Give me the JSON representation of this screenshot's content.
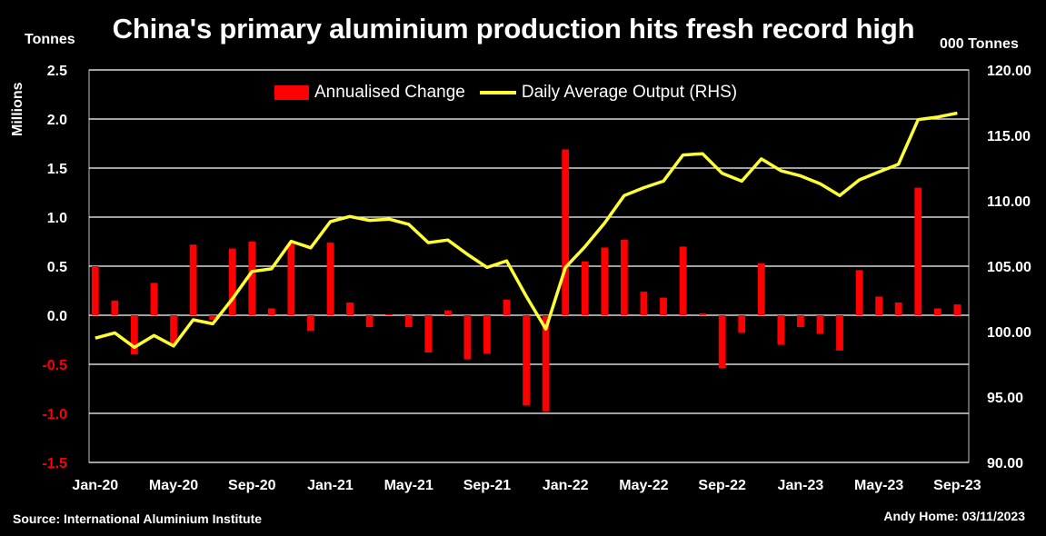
{
  "header": {
    "title": "China's primary aluminium production hits fresh record high",
    "left_unit": "Tonnes",
    "right_unit": "000 Tonnes",
    "left_axis_label": "Millions"
  },
  "footer": {
    "source": "Source: International Aluminium Institute",
    "author": "Andy Home: 03/11/2023"
  },
  "legend": {
    "bar_label": "Annualised Change",
    "line_label": "Daily Average Output (RHS)"
  },
  "colors": {
    "background": "#000000",
    "bar": "#ff0000",
    "line": "#ffff33",
    "grid": "#ffffff",
    "negative_tick": "#ff0000",
    "positive_tick": "#ffffff"
  },
  "chart_data": {
    "type": "bar",
    "months": [
      "Jan-20",
      "Feb-20",
      "Mar-20",
      "Apr-20",
      "May-20",
      "Jun-20",
      "Jul-20",
      "Aug-20",
      "Sep-20",
      "Oct-20",
      "Nov-20",
      "Dec-20",
      "Jan-21",
      "Feb-21",
      "Mar-21",
      "Apr-21",
      "May-21",
      "Jun-21",
      "Jul-21",
      "Aug-21",
      "Sep-21",
      "Oct-21",
      "Nov-21",
      "Dec-21",
      "Jan-22",
      "Feb-22",
      "Mar-22",
      "Apr-22",
      "May-22",
      "Jun-22",
      "Jul-22",
      "Aug-22",
      "Sep-22",
      "Oct-22",
      "Nov-22",
      "Dec-22",
      "Jan-23",
      "Feb-23",
      "Mar-23",
      "Apr-23",
      "May-23",
      "Jun-23",
      "Jul-23",
      "Aug-23",
      "Sep-23"
    ],
    "x_tick_labels": [
      "Jan-20",
      "May-20",
      "Sep-20",
      "Jan-21",
      "May-21",
      "Sep-21",
      "Jan-22",
      "May-22",
      "Sep-22",
      "Jan-23",
      "May-23",
      "Sep-23"
    ],
    "x_tick_every": 4,
    "series": [
      {
        "name": "Annualised Change",
        "axis": "left",
        "kind": "bar",
        "values": [
          0.5,
          0.15,
          -0.4,
          0.33,
          -0.3,
          0.72,
          -0.05,
          0.68,
          0.75,
          0.07,
          0.73,
          -0.16,
          0.74,
          0.13,
          -0.12,
          0.01,
          -0.12,
          -0.38,
          0.05,
          -0.45,
          -0.39,
          0.16,
          -0.92,
          -0.98,
          1.69,
          0.55,
          0.69,
          0.77,
          0.24,
          0.18,
          0.7,
          0.02,
          -0.54,
          -0.18,
          0.53,
          -0.3,
          -0.12,
          -0.19,
          -0.36,
          0.46,
          0.19,
          0.13,
          1.3,
          0.07,
          0.11
        ]
      },
      {
        "name": "Daily Average Output (RHS)",
        "axis": "right",
        "kind": "line",
        "values": [
          99.5,
          99.9,
          98.8,
          99.7,
          98.9,
          100.9,
          100.6,
          102.5,
          104.6,
          104.8,
          106.9,
          106.4,
          108.4,
          108.8,
          108.5,
          108.6,
          108.2,
          106.8,
          107.0,
          105.9,
          104.9,
          105.4,
          102.7,
          100.2,
          104.9,
          106.5,
          108.3,
          110.4,
          111.0,
          111.5,
          113.5,
          113.6,
          112.1,
          111.5,
          113.2,
          112.3,
          111.9,
          111.3,
          110.4,
          111.6,
          112.2,
          112.8,
          116.2,
          116.4,
          116.7
        ]
      }
    ],
    "y_left": {
      "min": -1.5,
      "max": 2.5,
      "ticks": [
        "2.5",
        "2.0",
        "1.5",
        "1.0",
        "0.5",
        "0.0",
        "-0.5",
        "-1.0",
        "-1.5"
      ]
    },
    "y_right": {
      "min": 90,
      "max": 120,
      "ticks": [
        "120.00",
        "115.00",
        "110.00",
        "105.00",
        "100.00",
        "95.00",
        "90.00"
      ]
    },
    "grid": true,
    "legend_position": "top-center"
  }
}
